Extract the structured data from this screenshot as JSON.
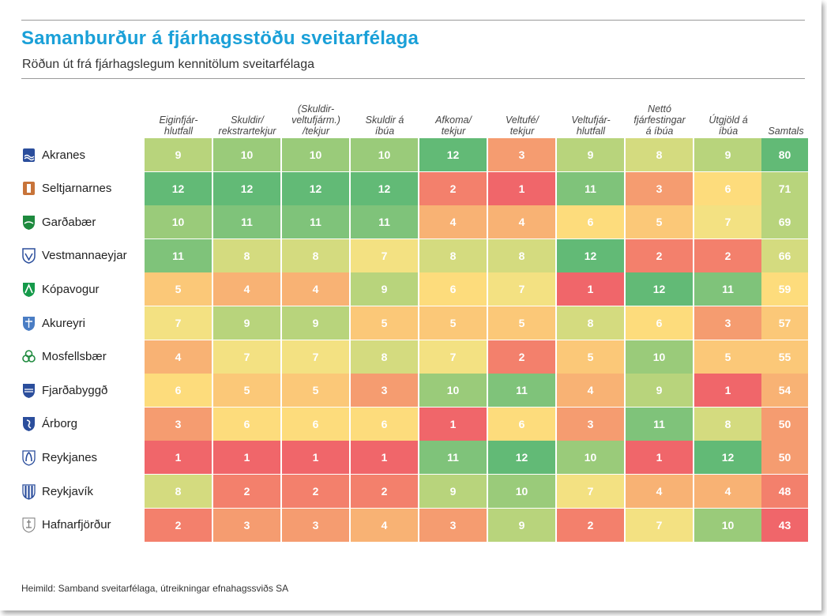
{
  "title": "Samanburður á fjárhagsstöðu sveitarfélaga",
  "subtitle": "Röðun út frá fjárhagslegum kennitölum sveitarfélaga",
  "source": "Heimild: Samband sveitarfélaga, útreikningar efnahagssviðs SA",
  "colors": {
    "title": "#1aa0d8",
    "rank_1": "#f0666a",
    "rank_2": "#f3806c",
    "rank_3": "#f59c70",
    "rank_4": "#f8b274",
    "rank_5": "#fbc878",
    "rank_6": "#fddc7c",
    "rank_7": "#f3e182",
    "rank_8": "#d4db7f",
    "rank_9": "#b8d47c",
    "rank_10": "#9acb7a",
    "rank_11": "#7fc37a",
    "rank_12": "#62ba76",
    "total_high": "#62ba76",
    "total_low": "#f0666a"
  },
  "chart_data": {
    "type": "table",
    "title": "Samanburður á fjárhagsstöðu sveitarfélaga",
    "subtitle": "Röðun út frá fjárhagslegum kennitölum sveitarfélaga",
    "columns": [
      "Eiginfjár-\nhlutfall",
      "Skuldir/\nrekstrartekjur",
      "(Skuldir-\nveltufjárm.)\n/tekjur",
      "Skuldir á\níbúa",
      "Afkoma/\ntekjur",
      "Veltufé/\ntekjur",
      "Veltufjár-\nhlutfall",
      "Nettó\nfjárfestingar\ná íbúa",
      "Útgjöld á\níbúa",
      "Samtals"
    ],
    "rows": [
      {
        "name": "Akranes",
        "icon": "akranes-crest-icon",
        "values": [
          9,
          10,
          10,
          10,
          12,
          3,
          9,
          8,
          9
        ],
        "total": 80
      },
      {
        "name": "Seltjarnarnes",
        "icon": "seltjarnarnes-crest-icon",
        "values": [
          12,
          12,
          12,
          12,
          2,
          1,
          11,
          3,
          6
        ],
        "total": 71
      },
      {
        "name": "Garðabær",
        "icon": "gardabaer-crest-icon",
        "values": [
          10,
          11,
          11,
          11,
          4,
          4,
          6,
          5,
          7
        ],
        "total": 69
      },
      {
        "name": "Vestmannaeyjar",
        "icon": "vestmannaeyjar-crest-icon",
        "values": [
          11,
          8,
          8,
          7,
          8,
          8,
          12,
          2,
          2
        ],
        "total": 66
      },
      {
        "name": "Kópavogur",
        "icon": "kopavogur-crest-icon",
        "values": [
          5,
          4,
          4,
          9,
          6,
          7,
          1,
          12,
          11
        ],
        "total": 59
      },
      {
        "name": "Akureyri",
        "icon": "akureyri-crest-icon",
        "values": [
          7,
          9,
          9,
          5,
          5,
          5,
          8,
          6,
          3
        ],
        "total": 57
      },
      {
        "name": "Mosfellsbær",
        "icon": "mosfellsbaer-crest-icon",
        "values": [
          4,
          7,
          7,
          8,
          7,
          2,
          5,
          10,
          5
        ],
        "total": 55
      },
      {
        "name": "Fjarðabyggð",
        "icon": "fjardabyggd-crest-icon",
        "values": [
          6,
          5,
          5,
          3,
          10,
          11,
          4,
          9,
          1
        ],
        "total": 54
      },
      {
        "name": "Árborg",
        "icon": "arborg-crest-icon",
        "values": [
          3,
          6,
          6,
          6,
          1,
          6,
          3,
          11,
          8
        ],
        "total": 50
      },
      {
        "name": "Reykjanes",
        "icon": "reykjanes-crest-icon",
        "values": [
          1,
          1,
          1,
          1,
          11,
          12,
          10,
          1,
          12
        ],
        "total": 50
      },
      {
        "name": "Reykjavík",
        "icon": "reykjavik-crest-icon",
        "values": [
          8,
          2,
          2,
          2,
          9,
          10,
          7,
          4,
          4
        ],
        "total": 48
      },
      {
        "name": "Hafnarfjörður",
        "icon": "hafnarfjordur-crest-icon",
        "values": [
          2,
          3,
          3,
          4,
          3,
          9,
          2,
          7,
          10
        ],
        "total": 43
      }
    ],
    "value_range": [
      1,
      12
    ],
    "total_range": [
      43,
      80
    ]
  }
}
